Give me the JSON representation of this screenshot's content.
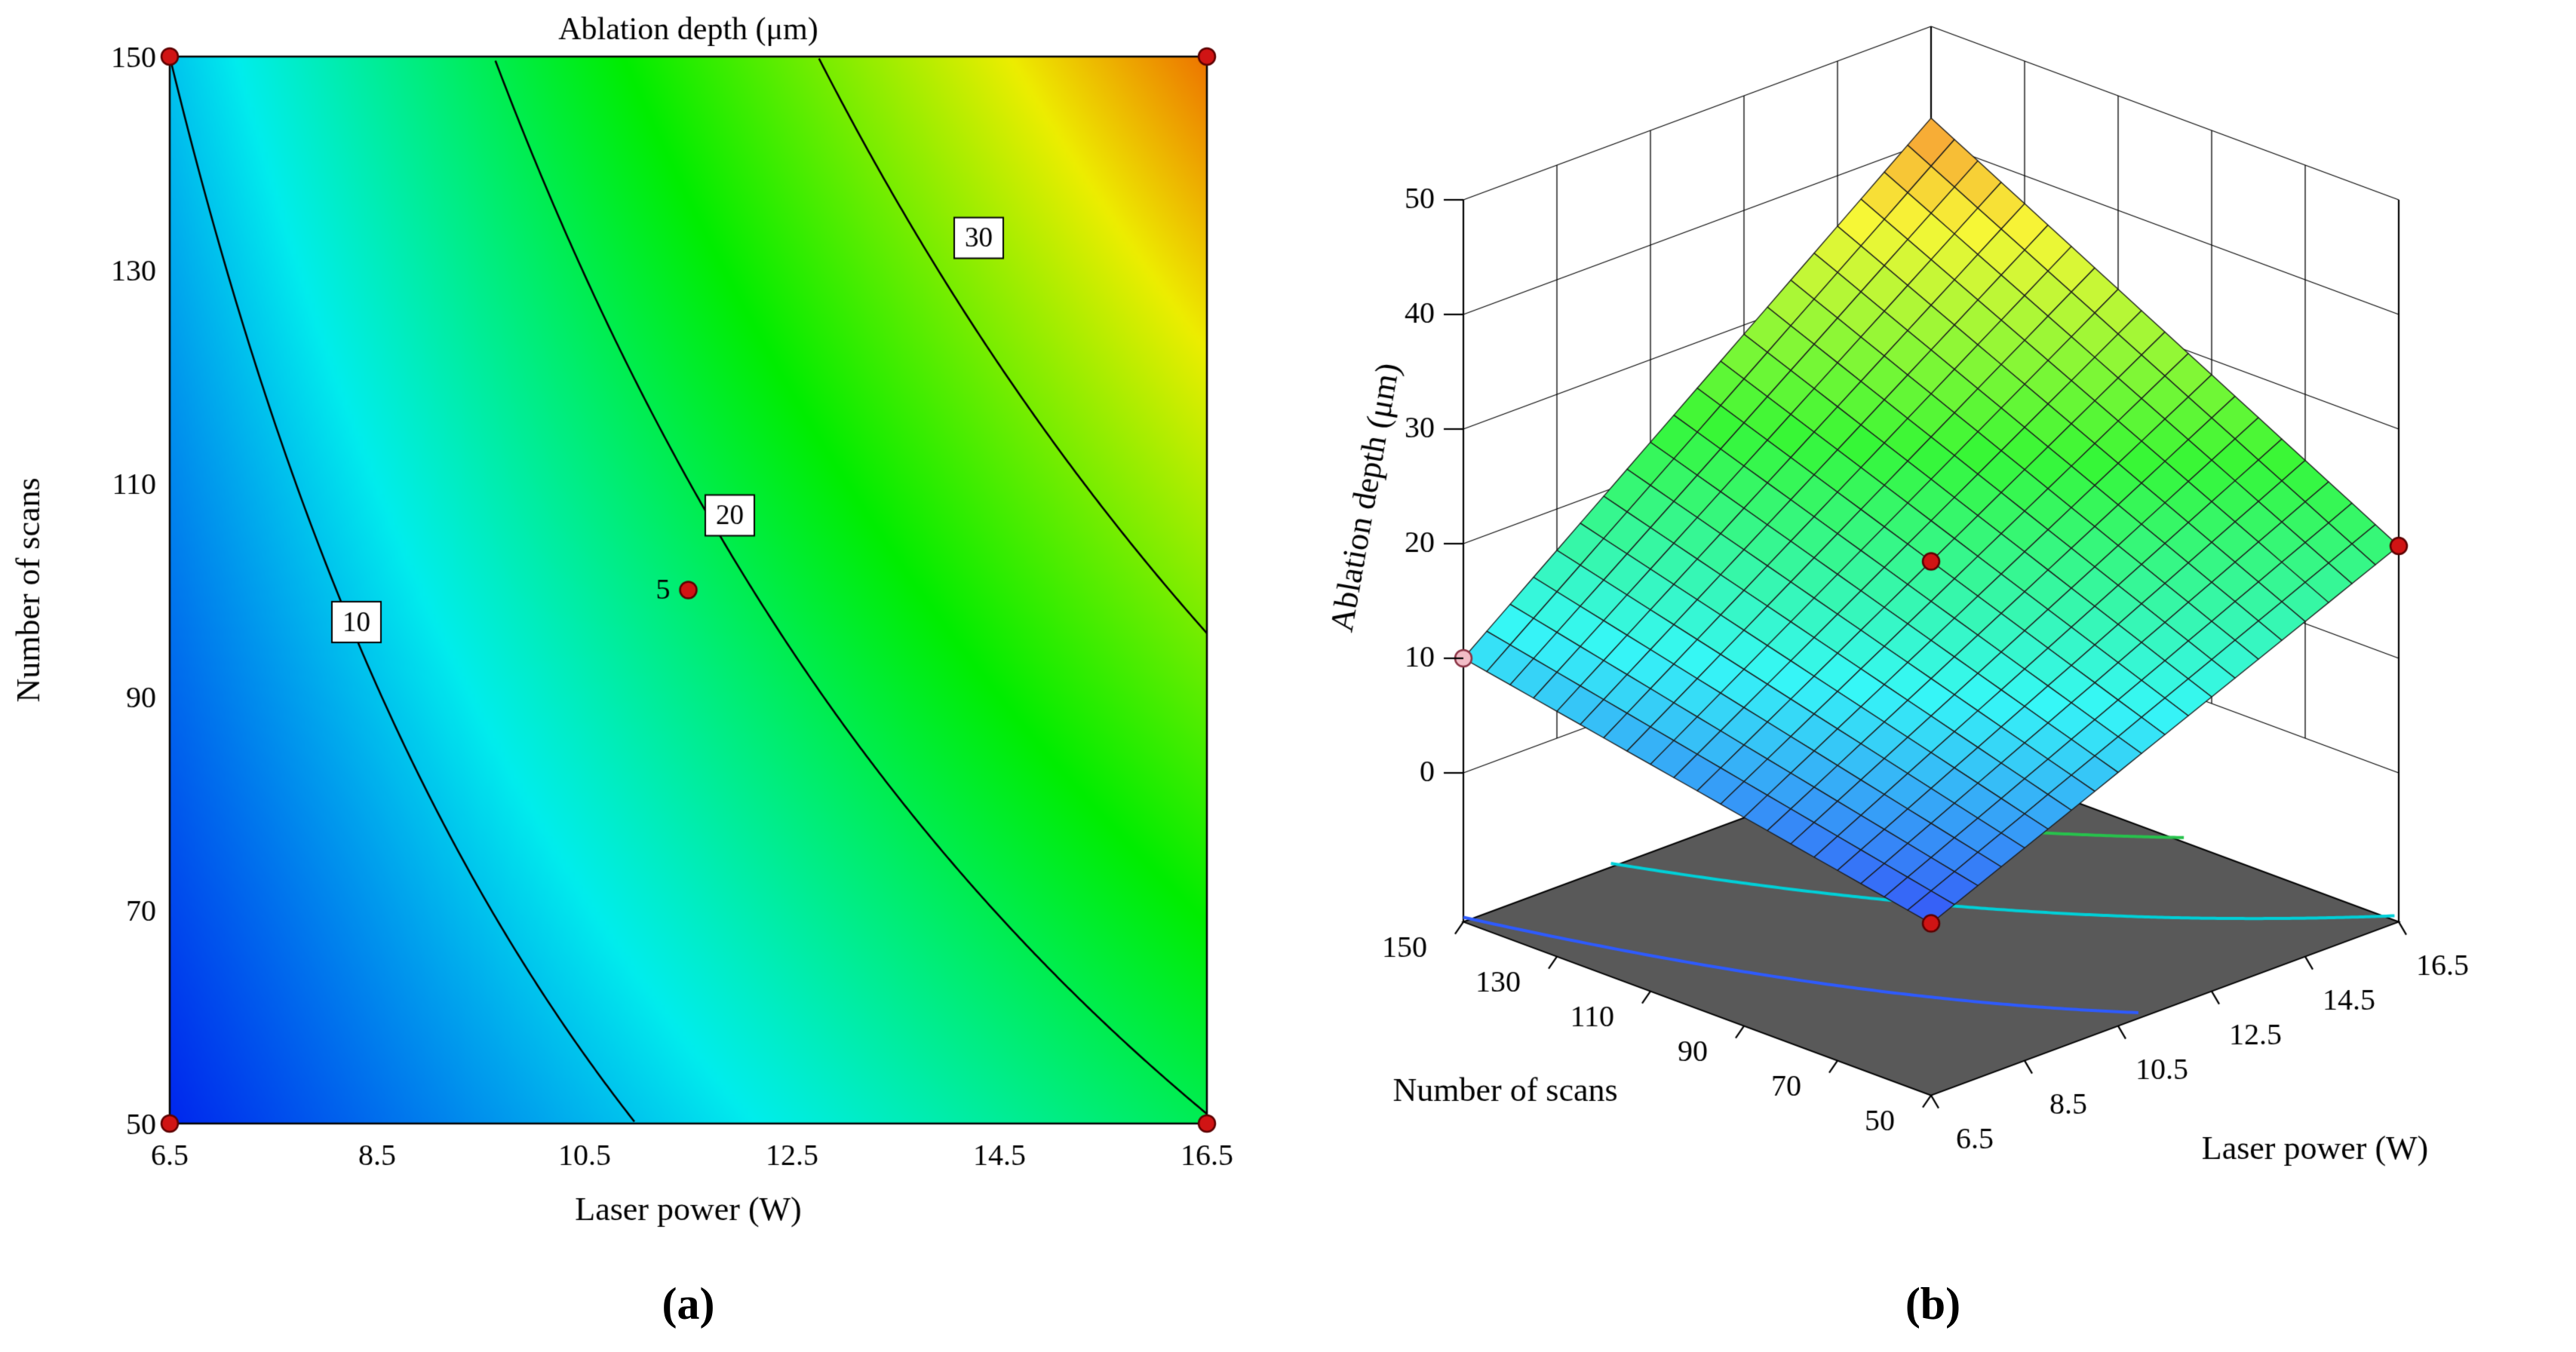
{
  "figure": {
    "captions": {
      "a": "(a)",
      "b": "(b)"
    }
  },
  "chart_data": [
    {
      "id": "contour2d",
      "type": "heatmap",
      "variant": "filled-contour",
      "title": "Ablation depth (μm)",
      "xlabel": "Laser power (W)",
      "ylabel": "Number of scans",
      "xlim": [
        6.5,
        16.5
      ],
      "ylim": [
        50,
        150
      ],
      "xticks": [
        "6.5",
        "8.5",
        "10.5",
        "12.5",
        "14.5",
        "16.5"
      ],
      "yticks": [
        "50",
        "70",
        "90",
        "110",
        "130",
        "150"
      ],
      "contour_levels": [
        10,
        20,
        30
      ],
      "contour_label_points": [
        {
          "level": "10",
          "P": 8.3,
          "N": 97
        },
        {
          "level": "20",
          "P": 11.9,
          "N": 107
        },
        {
          "level": "30",
          "P": 14.3,
          "N": 133
        }
      ],
      "design_points": [
        [
          6.5,
          50
        ],
        [
          6.5,
          150
        ],
        [
          16.5,
          50
        ],
        [
          16.5,
          150
        ],
        [
          11.5,
          100
        ]
      ],
      "center_replicates_label": "5",
      "model": {
        "intercept": 2.0,
        "coef_P": 1.78,
        "coef_N": 0.08,
        "coef_PN": 0.0142,
        "P0": 6.5,
        "N0": 50
      },
      "corner_values": {
        "P": [
          6.5,
          16.5
        ],
        "N": [
          50,
          150
        ],
        "z": [
          [
            2.0,
            10.0
          ],
          [
            19.8,
            42.0
          ]
        ],
        "center_z": 18.5
      },
      "color_scale": {
        "zmin": 0,
        "zmax": 48,
        "hue_max": 240
      },
      "point_color": "#d01414"
    },
    {
      "id": "surface3d",
      "type": "surface",
      "zlabel": "Ablation depth (μm)",
      "xlabel": "Laser power (W)",
      "ylabel": "Number of scans",
      "xlim": [
        6.5,
        16.5
      ],
      "ylim": [
        50,
        150
      ],
      "zlim": [
        0,
        50
      ],
      "xticks": [
        "6.5",
        "8.5",
        "10.5",
        "12.5",
        "14.5",
        "16.5"
      ],
      "yticks": [
        "50",
        "70",
        "90",
        "110",
        "130",
        "150"
      ],
      "zticks": [
        "0",
        "10",
        "20",
        "30",
        "40",
        "50"
      ],
      "mesh_divisions": 20,
      "floor_offset_z": -13,
      "floor_color": "#595959",
      "floor_contour_levels": [
        10,
        20,
        30
      ],
      "floor_contour_colors": [
        "#2e5bff",
        "#00d0d8",
        "#27c24c"
      ],
      "design_points_surface": [
        [
          6.5,
          50
        ],
        [
          16.5,
          50
        ],
        [
          11.5,
          100
        ]
      ],
      "design_points_hidden": [
        [
          6.5,
          150
        ]
      ],
      "point_color": "#d01414",
      "hidden_point_color": "#f2bcc6"
    }
  ]
}
